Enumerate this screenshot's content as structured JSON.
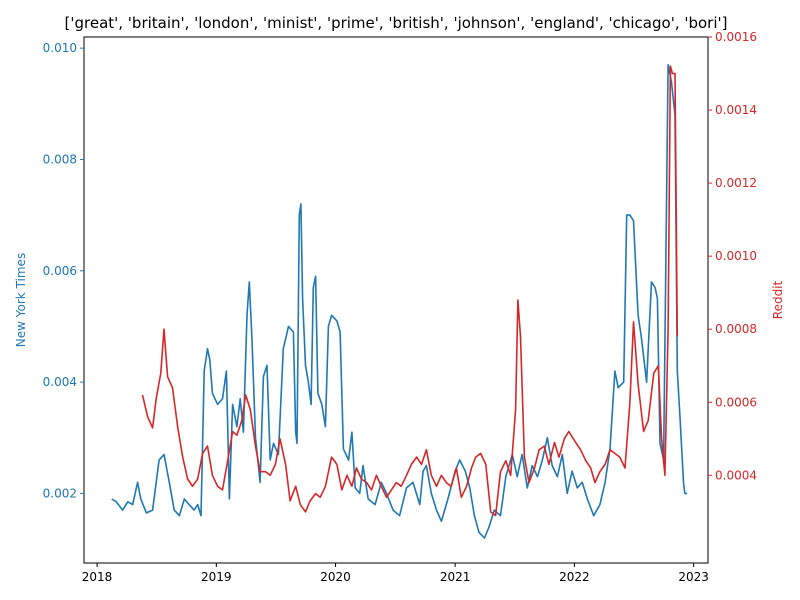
{
  "chart_data": {
    "type": "line",
    "title": "['great', 'britain', 'london', 'minist', 'prime', 'british', 'johnson', 'england', 'chicago', 'bori']",
    "x_range": [
      "2017-11-22",
      "2023-02-14"
    ],
    "x_ticks": [
      {
        "label": "2018",
        "date": "2018-01-01"
      },
      {
        "label": "2019",
        "date": "2019-01-01"
      },
      {
        "label": "2020",
        "date": "2020-01-01"
      },
      {
        "label": "2021",
        "date": "2021-01-01"
      },
      {
        "label": "2022",
        "date": "2022-01-01"
      },
      {
        "label": "2023",
        "date": "2023-01-01"
      }
    ],
    "grid": false,
    "legend": "none",
    "y_left": {
      "label": "New York Times",
      "range": [
        0.00075,
        0.0102
      ],
      "ticks": [
        "0.002",
        "0.004",
        "0.006",
        "0.008",
        "0.010"
      ],
      "tick_values": [
        0.002,
        0.004,
        0.006,
        0.008,
        0.01
      ],
      "color": "#1f77b4"
    },
    "y_right": {
      "label": "Reddit",
      "range": [
        0.00016,
        0.0016
      ],
      "ticks": [
        "0.0004",
        "0.0006",
        "0.0008",
        "0.0010",
        "0.0012",
        "0.0014",
        "0.0016"
      ],
      "tick_values": [
        0.0004,
        0.0006,
        0.0008,
        0.001,
        0.0012,
        0.0014,
        0.0016
      ],
      "color": "#d62728"
    },
    "series": [
      {
        "axis": "left",
        "color": "#1f77b4",
        "points": [
          [
            "2018-02-15",
            0.0019
          ],
          [
            "2018-03-01",
            0.00185
          ],
          [
            "2018-03-20",
            0.0017
          ],
          [
            "2018-04-05",
            0.00185
          ],
          [
            "2018-04-20",
            0.0018
          ],
          [
            "2018-05-05",
            0.0022
          ],
          [
            "2018-05-15",
            0.0019
          ],
          [
            "2018-06-01",
            0.00165
          ],
          [
            "2018-06-20",
            0.0017
          ],
          [
            "2018-07-10",
            0.0026
          ],
          [
            "2018-07-25",
            0.0027
          ],
          [
            "2018-08-10",
            0.0022
          ],
          [
            "2018-08-25",
            0.0017
          ],
          [
            "2018-09-10",
            0.0016
          ],
          [
            "2018-09-25",
            0.0019
          ],
          [
            "2018-10-10",
            0.0018
          ],
          [
            "2018-10-25",
            0.0017
          ],
          [
            "2018-11-05",
            0.0018
          ],
          [
            "2018-11-15",
            0.0016
          ],
          [
            "2018-11-25",
            0.0042
          ],
          [
            "2018-12-05",
            0.0046
          ],
          [
            "2018-12-12",
            0.0044
          ],
          [
            "2018-12-20",
            0.0038
          ],
          [
            "2019-01-05",
            0.0036
          ],
          [
            "2019-01-20",
            0.0037
          ],
          [
            "2019-02-01",
            0.0042
          ],
          [
            "2019-02-10",
            0.0019
          ],
          [
            "2019-02-20",
            0.0036
          ],
          [
            "2019-03-05",
            0.0032
          ],
          [
            "2019-03-15",
            0.0037
          ],
          [
            "2019-03-25",
            0.0031
          ],
          [
            "2019-04-05",
            0.0052
          ],
          [
            "2019-04-12",
            0.0058
          ],
          [
            "2019-04-20",
            0.0048
          ],
          [
            "2019-05-01",
            0.003
          ],
          [
            "2019-05-15",
            0.0022
          ],
          [
            "2019-05-25",
            0.0041
          ],
          [
            "2019-06-05",
            0.0043
          ],
          [
            "2019-06-15",
            0.0026
          ],
          [
            "2019-06-25",
            0.0029
          ],
          [
            "2019-07-10",
            0.0027
          ],
          [
            "2019-07-25",
            0.0046
          ],
          [
            "2019-08-10",
            0.005
          ],
          [
            "2019-08-25",
            0.0049
          ],
          [
            "2019-09-01",
            0.0031
          ],
          [
            "2019-09-05",
            0.0029
          ],
          [
            "2019-09-12",
            0.007
          ],
          [
            "2019-09-17",
            0.0072
          ],
          [
            "2019-09-22",
            0.0055
          ],
          [
            "2019-10-01",
            0.0043
          ],
          [
            "2019-10-10",
            0.004
          ],
          [
            "2019-10-18",
            0.0036
          ],
          [
            "2019-10-25",
            0.0057
          ],
          [
            "2019-11-01",
            0.0059
          ],
          [
            "2019-11-08",
            0.0038
          ],
          [
            "2019-11-20",
            0.0036
          ],
          [
            "2019-12-01",
            0.0032
          ],
          [
            "2019-12-10",
            0.005
          ],
          [
            "2019-12-20",
            0.0052
          ],
          [
            "2020-01-05",
            0.0051
          ],
          [
            "2020-01-15",
            0.0049
          ],
          [
            "2020-01-25",
            0.0028
          ],
          [
            "2020-02-10",
            0.0026
          ],
          [
            "2020-02-20",
            0.0031
          ],
          [
            "2020-03-01",
            0.0021
          ],
          [
            "2020-03-15",
            0.002
          ],
          [
            "2020-03-25",
            0.0025
          ],
          [
            "2020-04-10",
            0.0019
          ],
          [
            "2020-05-01",
            0.0018
          ],
          [
            "2020-05-20",
            0.0022
          ],
          [
            "2020-06-05",
            0.002
          ],
          [
            "2020-06-25",
            0.0017
          ],
          [
            "2020-07-15",
            0.0016
          ],
          [
            "2020-08-05",
            0.0021
          ],
          [
            "2020-08-25",
            0.0022
          ],
          [
            "2020-09-15",
            0.0018
          ],
          [
            "2020-09-25",
            0.0024
          ],
          [
            "2020-10-05",
            0.0025
          ],
          [
            "2020-10-20",
            0.002
          ],
          [
            "2020-11-05",
            0.0017
          ],
          [
            "2020-11-20",
            0.0015
          ],
          [
            "2020-12-10",
            0.0019
          ],
          [
            "2021-01-01",
            0.0024
          ],
          [
            "2021-01-15",
            0.0026
          ],
          [
            "2021-02-01",
            0.0024
          ],
          [
            "2021-02-15",
            0.0021
          ],
          [
            "2021-03-01",
            0.0016
          ],
          [
            "2021-03-15",
            0.0013
          ],
          [
            "2021-04-01",
            0.0012
          ],
          [
            "2021-04-15",
            0.0014
          ],
          [
            "2021-05-01",
            0.0017
          ],
          [
            "2021-05-20",
            0.0016
          ],
          [
            "2021-06-05",
            0.0023
          ],
          [
            "2021-06-25",
            0.0027
          ],
          [
            "2021-07-10",
            0.0023
          ],
          [
            "2021-07-25",
            0.0027
          ],
          [
            "2021-08-10",
            0.0021
          ],
          [
            "2021-08-25",
            0.0025
          ],
          [
            "2021-09-10",
            0.0023
          ],
          [
            "2021-09-25",
            0.0026
          ],
          [
            "2021-10-10",
            0.003
          ],
          [
            "2021-10-25",
            0.0025
          ],
          [
            "2021-11-10",
            0.0023
          ],
          [
            "2021-11-25",
            0.0027
          ],
          [
            "2021-12-10",
            0.002
          ],
          [
            "2021-12-25",
            0.0024
          ],
          [
            "2022-01-10",
            0.0021
          ],
          [
            "2022-01-25",
            0.0022
          ],
          [
            "2022-02-10",
            0.0019
          ],
          [
            "2022-03-01",
            0.0016
          ],
          [
            "2022-03-20",
            0.0018
          ],
          [
            "2022-04-05",
            0.0022
          ],
          [
            "2022-04-20",
            0.0028
          ],
          [
            "2022-05-05",
            0.0042
          ],
          [
            "2022-05-15",
            0.0039
          ],
          [
            "2022-06-01",
            0.004
          ],
          [
            "2022-06-10",
            0.007
          ],
          [
            "2022-06-20",
            0.007
          ],
          [
            "2022-07-01",
            0.0069
          ],
          [
            "2022-07-15",
            0.0052
          ],
          [
            "2022-07-25",
            0.0048
          ],
          [
            "2022-08-10",
            0.004
          ],
          [
            "2022-08-25",
            0.0058
          ],
          [
            "2022-09-05",
            0.0057
          ],
          [
            "2022-09-12",
            0.0055
          ],
          [
            "2022-09-20",
            0.0029
          ],
          [
            "2022-10-01",
            0.0026
          ],
          [
            "2022-10-15",
            0.0097
          ],
          [
            "2022-10-25",
            0.0094
          ],
          [
            "2022-11-05",
            0.0088
          ],
          [
            "2022-11-12",
            0.0042
          ],
          [
            "2022-11-20",
            0.0034
          ],
          [
            "2022-12-01",
            0.0022
          ],
          [
            "2022-12-05",
            0.002
          ],
          [
            "2022-12-12",
            0.002
          ]
        ]
      },
      {
        "axis": "right",
        "color": "#d62728",
        "points": [
          [
            "2018-05-20",
            0.00062
          ],
          [
            "2018-06-05",
            0.00056
          ],
          [
            "2018-06-20",
            0.00053
          ],
          [
            "2018-07-01",
            0.00061
          ],
          [
            "2018-07-15",
            0.00068
          ],
          [
            "2018-07-25",
            0.0008
          ],
          [
            "2018-08-05",
            0.00067
          ],
          [
            "2018-08-20",
            0.00064
          ],
          [
            "2018-09-05",
            0.00053
          ],
          [
            "2018-09-20",
            0.00045
          ],
          [
            "2018-10-05",
            0.00039
          ],
          [
            "2018-10-20",
            0.00037
          ],
          [
            "2018-11-05",
            0.00039
          ],
          [
            "2018-11-20",
            0.00046
          ],
          [
            "2018-12-05",
            0.00048
          ],
          [
            "2018-12-20",
            0.0004
          ],
          [
            "2019-01-05",
            0.00037
          ],
          [
            "2019-01-20",
            0.00036
          ],
          [
            "2019-02-05",
            0.00044
          ],
          [
            "2019-02-20",
            0.00052
          ],
          [
            "2019-03-05",
            0.00051
          ],
          [
            "2019-03-20",
            0.00055
          ],
          [
            "2019-04-01",
            0.00062
          ],
          [
            "2019-04-15",
            0.00058
          ],
          [
            "2019-05-01",
            0.00048
          ],
          [
            "2019-05-15",
            0.00041
          ],
          [
            "2019-06-01",
            0.00041
          ],
          [
            "2019-06-15",
            0.0004
          ],
          [
            "2019-07-01",
            0.00043
          ],
          [
            "2019-07-15",
            0.0005
          ],
          [
            "2019-08-01",
            0.00043
          ],
          [
            "2019-08-15",
            0.00033
          ],
          [
            "2019-09-01",
            0.00037
          ],
          [
            "2019-09-15",
            0.00032
          ],
          [
            "2019-10-01",
            0.0003
          ],
          [
            "2019-10-15",
            0.00033
          ],
          [
            "2019-11-01",
            0.00035
          ],
          [
            "2019-11-15",
            0.00034
          ],
          [
            "2019-12-01",
            0.00037
          ],
          [
            "2019-12-20",
            0.00045
          ],
          [
            "2020-01-05",
            0.00043
          ],
          [
            "2020-01-20",
            0.00036
          ],
          [
            "2020-02-05",
            0.0004
          ],
          [
            "2020-02-20",
            0.00037
          ],
          [
            "2020-03-05",
            0.00042
          ],
          [
            "2020-03-20",
            0.00039
          ],
          [
            "2020-04-05",
            0.00038
          ],
          [
            "2020-04-20",
            0.00036
          ],
          [
            "2020-05-05",
            0.0004
          ],
          [
            "2020-05-20",
            0.00037
          ],
          [
            "2020-06-05",
            0.00034
          ],
          [
            "2020-06-20",
            0.00036
          ],
          [
            "2020-07-05",
            0.00038
          ],
          [
            "2020-07-20",
            0.00037
          ],
          [
            "2020-08-05",
            0.0004
          ],
          [
            "2020-08-20",
            0.00043
          ],
          [
            "2020-09-05",
            0.00045
          ],
          [
            "2020-09-20",
            0.00043
          ],
          [
            "2020-10-05",
            0.00047
          ],
          [
            "2020-10-20",
            0.0004
          ],
          [
            "2020-11-05",
            0.00037
          ],
          [
            "2020-11-20",
            0.0004
          ],
          [
            "2020-12-05",
            0.00038
          ],
          [
            "2020-12-20",
            0.00037
          ],
          [
            "2021-01-05",
            0.00042
          ],
          [
            "2021-01-20",
            0.00034
          ],
          [
            "2021-02-05",
            0.00037
          ],
          [
            "2021-02-20",
            0.00042
          ],
          [
            "2021-03-05",
            0.00045
          ],
          [
            "2021-03-20",
            0.00046
          ],
          [
            "2021-04-05",
            0.00043
          ],
          [
            "2021-04-20",
            0.0003
          ],
          [
            "2021-05-05",
            0.00029
          ],
          [
            "2021-05-20",
            0.00041
          ],
          [
            "2021-06-05",
            0.00044
          ],
          [
            "2021-06-20",
            0.0004
          ],
          [
            "2021-07-05",
            0.00058
          ],
          [
            "2021-07-12",
            0.00088
          ],
          [
            "2021-07-20",
            0.00078
          ],
          [
            "2021-08-01",
            0.00045
          ],
          [
            "2021-08-15",
            0.00038
          ],
          [
            "2021-09-01",
            0.00042
          ],
          [
            "2021-09-15",
            0.00047
          ],
          [
            "2021-10-01",
            0.00048
          ],
          [
            "2021-10-15",
            0.00043
          ],
          [
            "2021-11-01",
            0.00049
          ],
          [
            "2021-11-15",
            0.00045
          ],
          [
            "2021-12-01",
            0.0005
          ],
          [
            "2021-12-15",
            0.00052
          ],
          [
            "2022-01-05",
            0.00049
          ],
          [
            "2022-01-20",
            0.00047
          ],
          [
            "2022-02-05",
            0.00044
          ],
          [
            "2022-02-20",
            0.00042
          ],
          [
            "2022-03-05",
            0.00038
          ],
          [
            "2022-03-20",
            0.00041
          ],
          [
            "2022-04-05",
            0.00043
          ],
          [
            "2022-04-20",
            0.00047
          ],
          [
            "2022-05-05",
            0.00046
          ],
          [
            "2022-05-20",
            0.00045
          ],
          [
            "2022-06-05",
            0.00042
          ],
          [
            "2022-06-20",
            0.0006
          ],
          [
            "2022-07-01",
            0.00082
          ],
          [
            "2022-07-15",
            0.00065
          ],
          [
            "2022-08-01",
            0.00052
          ],
          [
            "2022-08-15",
            0.00055
          ],
          [
            "2022-09-01",
            0.00068
          ],
          [
            "2022-09-15",
            0.0007
          ],
          [
            "2022-09-25",
            0.0005
          ],
          [
            "2022-10-05",
            0.0004
          ],
          [
            "2022-10-15",
            0.0008
          ],
          [
            "2022-10-22",
            0.00152
          ],
          [
            "2022-10-28",
            0.0015
          ],
          [
            "2022-11-05",
            0.0015
          ],
          [
            "2022-11-12",
            0.00078
          ]
        ]
      }
    ]
  }
}
